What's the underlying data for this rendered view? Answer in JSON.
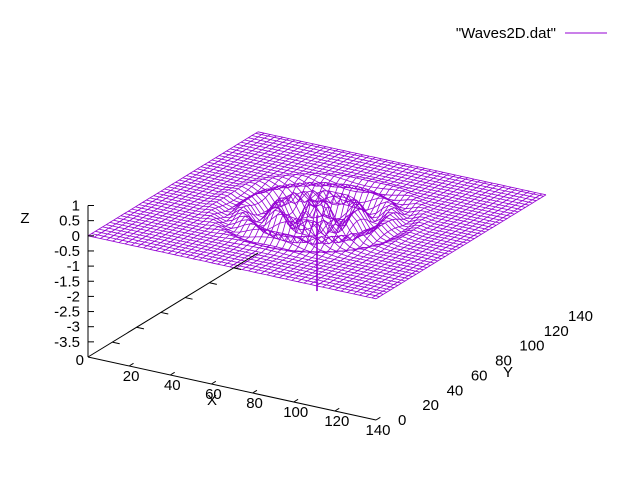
{
  "chart_data": {
    "type": "surface",
    "legend": {
      "label": "\"Waves2D.dat\"",
      "position": "top-right",
      "color": "#9400d3"
    },
    "xlabel": "X",
    "ylabel": "Y",
    "zlabel": "Z",
    "xlim": [
      0,
      140
    ],
    "ylim": [
      0,
      140
    ],
    "x_ticks": [
      0,
      20,
      40,
      60,
      80,
      100,
      120,
      140
    ],
    "y_ticks": [
      0,
      20,
      40,
      60,
      80,
      100,
      120,
      140
    ],
    "z_ticks": [
      {
        "value": 1,
        "label": "1"
      },
      {
        "value": 0.5,
        "label": "0.5"
      },
      {
        "value": 0,
        "label": "0"
      },
      {
        "value": -0.5,
        "label": "-0.5"
      },
      {
        "value": -1,
        "label": "-1"
      },
      {
        "value": -1.5,
        "label": "-1.5"
      },
      {
        "value": -2,
        "label": "-2"
      },
      {
        "value": -2.5,
        "label": "-2.5"
      },
      {
        "value": -3,
        "label": "-3"
      },
      {
        "value": -3.5,
        "label": "-3.5"
      }
    ],
    "surface": {
      "grid_min": 0,
      "grid_max": 140,
      "grid_step": 3,
      "center": [
        70,
        70
      ],
      "ripple_radius": 50,
      "ripple_amplitude": 0.5,
      "ripple_wavelength": 14,
      "spike_depth": -2.5,
      "color": "#9400d3"
    }
  }
}
